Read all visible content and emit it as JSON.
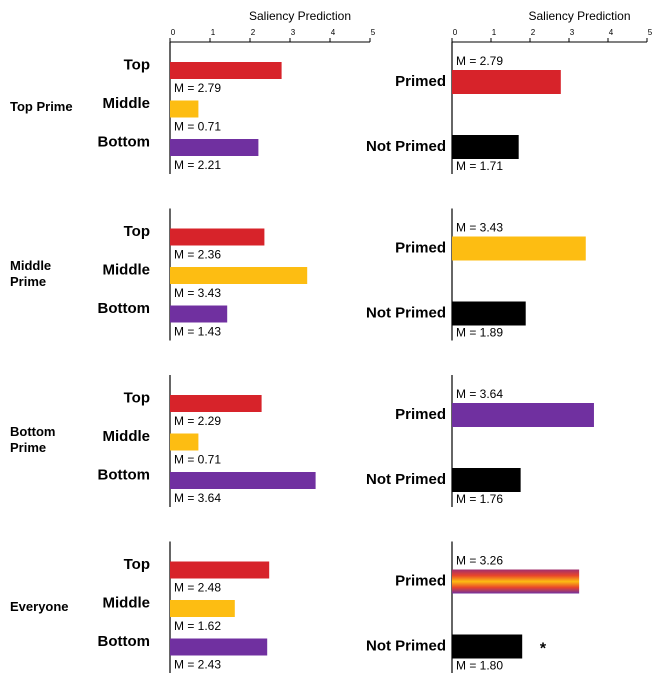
{
  "chart_data": [
    {
      "type": "bar",
      "orientation": "horizontal",
      "group": "Top Prime",
      "xlabel": "Saliency Prediction",
      "categories": [
        "Top",
        "Middle",
        "Bottom"
      ],
      "values": [
        2.79,
        0.71,
        2.21
      ],
      "value_labels": [
        "M = 2.79",
        "M = 0.71",
        "M = 2.21"
      ],
      "colors": [
        "#d7232a",
        "#fdbd12",
        "#7030a0"
      ],
      "xlim": [
        0,
        5
      ],
      "xticks": [
        0,
        1,
        2,
        3,
        4,
        5
      ]
    },
    {
      "type": "bar",
      "orientation": "horizontal",
      "xlabel": "Saliency Prediction",
      "categories": [
        "Primed",
        "Not Primed"
      ],
      "values": [
        2.79,
        1.71
      ],
      "value_labels": [
        "M = 2.79",
        "M = 1.71"
      ],
      "colors": [
        "#d7232a",
        "#000000"
      ],
      "xlim": [
        0,
        5
      ],
      "xticks": [
        0,
        1,
        2,
        3,
        4,
        5
      ]
    },
    {
      "type": "bar",
      "orientation": "horizontal",
      "group": "Middle Prime",
      "categories": [
        "Top",
        "Middle",
        "Bottom"
      ],
      "values": [
        2.36,
        3.43,
        1.43
      ],
      "value_labels": [
        "M = 2.36",
        "M = 3.43",
        "M = 1.43"
      ],
      "colors": [
        "#d7232a",
        "#fdbd12",
        "#7030a0"
      ],
      "xlim": [
        0,
        5
      ]
    },
    {
      "type": "bar",
      "orientation": "horizontal",
      "categories": [
        "Primed",
        "Not Primed"
      ],
      "values": [
        3.43,
        1.89
      ],
      "value_labels": [
        "M = 3.43",
        "M = 1.89"
      ],
      "colors": [
        "#fdbd12",
        "#000000"
      ],
      "xlim": [
        0,
        5
      ]
    },
    {
      "type": "bar",
      "orientation": "horizontal",
      "group": "Bottom Prime",
      "categories": [
        "Top",
        "Middle",
        "Bottom"
      ],
      "values": [
        2.29,
        0.71,
        3.64
      ],
      "value_labels": [
        "M = 2.29",
        "M = 0.71",
        "M = 3.64"
      ],
      "colors": [
        "#d7232a",
        "#fdbd12",
        "#7030a0"
      ],
      "xlim": [
        0,
        5
      ]
    },
    {
      "type": "bar",
      "orientation": "horizontal",
      "categories": [
        "Primed",
        "Not Primed"
      ],
      "values": [
        3.64,
        1.76
      ],
      "value_labels": [
        "M = 3.64",
        "M = 1.76"
      ],
      "colors": [
        "#7030a0",
        "#000000"
      ],
      "xlim": [
        0,
        5
      ]
    },
    {
      "type": "bar",
      "orientation": "horizontal",
      "group": "Everyone",
      "categories": [
        "Top",
        "Middle",
        "Bottom"
      ],
      "values": [
        2.48,
        1.62,
        2.43
      ],
      "value_labels": [
        "M = 2.48",
        "M = 1.62",
        "M = 2.43"
      ],
      "colors": [
        "#d7232a",
        "#fdbd12",
        "#7030a0"
      ],
      "xlim": [
        0,
        5
      ]
    },
    {
      "type": "bar",
      "orientation": "horizontal",
      "annotation": "*",
      "categories": [
        "Primed",
        "Not Primed"
      ],
      "values": [
        3.26,
        1.8
      ],
      "value_labels": [
        "M = 3.26",
        "M = 1.80"
      ],
      "colors": [
        [
          "#a03070",
          "#e8452a",
          "#fdbd12",
          "#e8452a",
          "#7030a0"
        ],
        "#000000"
      ],
      "xlim": [
        0,
        5
      ]
    }
  ]
}
